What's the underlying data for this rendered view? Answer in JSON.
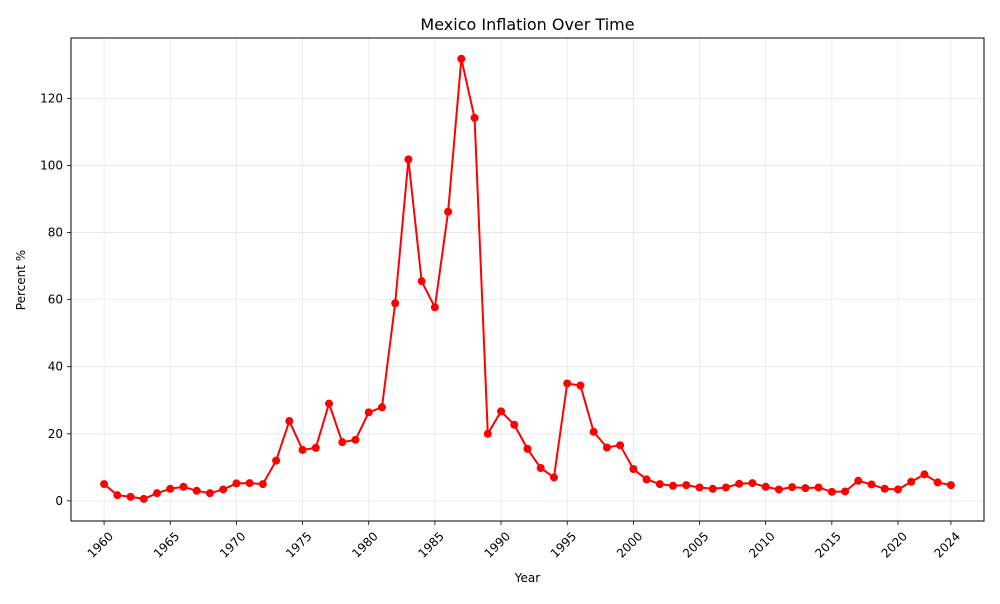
{
  "chart_data": {
    "type": "line",
    "title": "Mexico Inflation Over Time",
    "xlabel": "Year",
    "ylabel": "Percent %",
    "grid": true,
    "legend": "none",
    "xlim": [
      1957.5,
      2026.5
    ],
    "ylim": [
      -6,
      138
    ],
    "x_ticks": [
      1960,
      1965,
      1970,
      1975,
      1980,
      1985,
      1990,
      1995,
      2000,
      2005,
      2010,
      2015,
      2020,
      2024
    ],
    "y_ticks": [
      0,
      20,
      40,
      60,
      80,
      100,
      120
    ],
    "series": [
      {
        "color": "#ff0000",
        "x": [
          1960,
          1961,
          1962,
          1963,
          1964,
          1965,
          1966,
          1967,
          1968,
          1969,
          1970,
          1971,
          1972,
          1973,
          1974,
          1975,
          1976,
          1977,
          1978,
          1979,
          1980,
          1981,
          1982,
          1983,
          1984,
          1985,
          1986,
          1987,
          1988,
          1989,
          1990,
          1991,
          1992,
          1993,
          1994,
          1995,
          1996,
          1997,
          1998,
          1999,
          2000,
          2001,
          2002,
          2003,
          2004,
          2005,
          2006,
          2007,
          2008,
          2009,
          2010,
          2011,
          2012,
          2013,
          2014,
          2015,
          2016,
          2017,
          2018,
          2019,
          2020,
          2021,
          2022,
          2023,
          2024
        ],
        "values": [
          5.0,
          1.7,
          1.2,
          0.6,
          2.3,
          3.6,
          4.2,
          3.0,
          2.3,
          3.4,
          5.2,
          5.3,
          5.0,
          12.0,
          23.8,
          15.2,
          15.8,
          29.0,
          17.5,
          18.2,
          26.4,
          27.9,
          58.9,
          101.8,
          65.5,
          57.7,
          86.2,
          131.8,
          114.2,
          20.0,
          26.7,
          22.7,
          15.5,
          9.8,
          7.0,
          35.0,
          34.4,
          20.6,
          15.9,
          16.6,
          9.5,
          6.4,
          5.0,
          4.5,
          4.7,
          4.0,
          3.6,
          4.0,
          5.1,
          5.3,
          4.2,
          3.4,
          4.1,
          3.8,
          4.0,
          2.7,
          2.8,
          6.0,
          4.9,
          3.6,
          3.4,
          5.7,
          7.9,
          5.5,
          4.7
        ]
      }
    ]
  }
}
